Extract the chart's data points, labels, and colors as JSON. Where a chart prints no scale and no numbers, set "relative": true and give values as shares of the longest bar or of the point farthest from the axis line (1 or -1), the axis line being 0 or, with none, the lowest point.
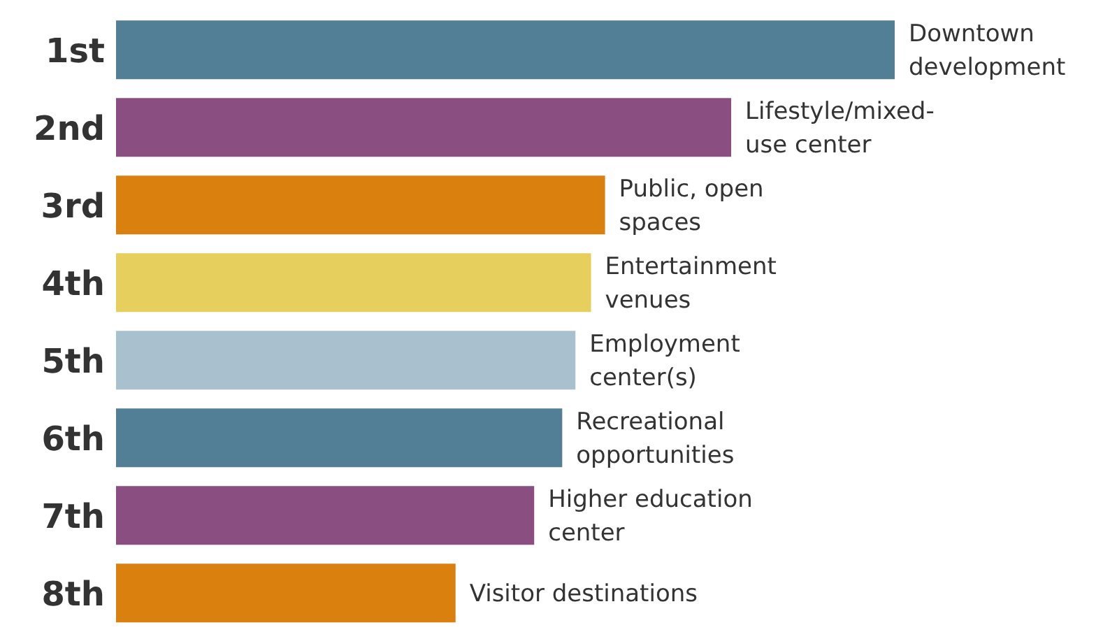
{
  "chart_data": {
    "type": "bar",
    "orientation": "horizontal",
    "relative": true,
    "categories": [
      "1st",
      "2nd",
      "3rd",
      "4th",
      "5th",
      "6th",
      "7th",
      "8th"
    ],
    "values": [
      1,
      0.79,
      0.628,
      0.61,
      0.59,
      0.573,
      0.537,
      0.436
    ],
    "colors": [
      "#527f95",
      "#8a4f80",
      "#d9800f",
      "#e6cf5c",
      "#a9c1cf",
      "#527f95",
      "#8a4f80",
      "#d9800f"
    ],
    "annotations": [
      {
        "text": "Downtown\ndevelopment",
        "x": 1,
        "y": "1st"
      },
      {
        "text": "Lifestyle/mixed-\nuse center",
        "x": 0.79,
        "y": "2nd"
      },
      {
        "text": "Public, open\nspaces",
        "x": 0.628,
        "y": "3rd"
      },
      {
        "text": "Entertainment\nvenues",
        "x": 0.61,
        "y": "4th"
      },
      {
        "text": "Employment\ncenter(s)",
        "x": 0.59,
        "y": "5th"
      },
      {
        "text": "Recreational\nopportunities",
        "x": 0.573,
        "y": "6th"
      },
      {
        "text": "Higher education\ncenter",
        "x": 0.537,
        "y": "7th"
      },
      {
        "text": "Visitor destinations",
        "x": 0.436,
        "y": "8th"
      }
    ],
    "grid": false,
    "legend": false
  }
}
